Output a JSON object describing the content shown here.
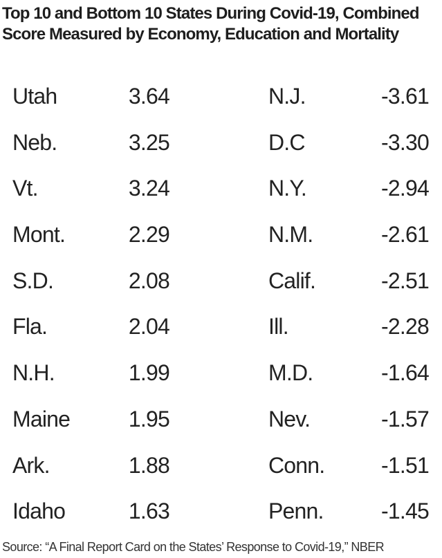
{
  "title": "Top 10 and Bottom 10 States During Covid-19, Combined Score Measured by Economy, Education and Mortality",
  "rows": [
    {
      "top_state": "Utah",
      "top_score": "3.64",
      "bottom_state": "N.J.",
      "bottom_score": "-3.61"
    },
    {
      "top_state": "Neb.",
      "top_score": "3.25",
      "bottom_state": "D.C",
      "bottom_score": "-3.30"
    },
    {
      "top_state": "Vt.",
      "top_score": "3.24",
      "bottom_state": "N.Y.",
      "bottom_score": "-2.94"
    },
    {
      "top_state": "Mont.",
      "top_score": "2.29",
      "bottom_state": "N.M.",
      "bottom_score": "-2.61"
    },
    {
      "top_state": "S.D.",
      "top_score": "2.08",
      "bottom_state": "Calif.",
      "bottom_score": "-2.51"
    },
    {
      "top_state": "Fla.",
      "top_score": "2.04",
      "bottom_state": "Ill.",
      "bottom_score": "-2.28"
    },
    {
      "top_state": "N.H.",
      "top_score": "1.99",
      "bottom_state": "M.D.",
      "bottom_score": "-1.64"
    },
    {
      "top_state": "Maine",
      "top_score": "1.95",
      "bottom_state": "Nev.",
      "bottom_score": "-1.57"
    },
    {
      "top_state": "Ark.",
      "top_score": "1.88",
      "bottom_state": "Conn.",
      "bottom_score": "-1.51"
    },
    {
      "top_state": "Idaho",
      "top_score": "1.63",
      "bottom_state": "Penn.",
      "bottom_score": "-1.45"
    }
  ],
  "source": "Source: “A Final Report Card on the States’ Response to Covid-19,” NBER"
}
